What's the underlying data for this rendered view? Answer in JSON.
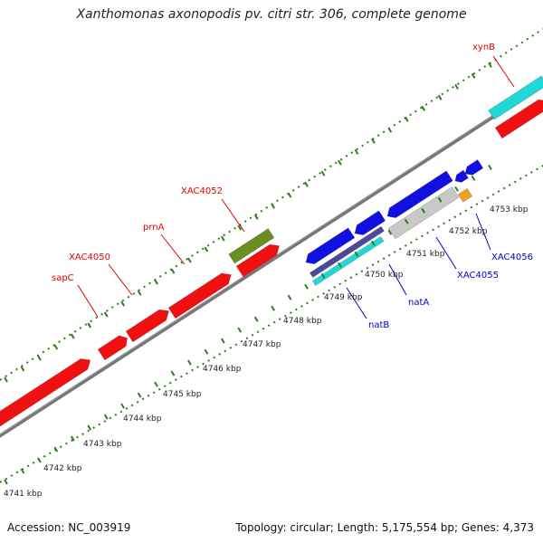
{
  "title": "Xanthomonas axonopodis pv. citri str. 306, complete genome",
  "accession": "Accession: NC_003919",
  "summary": "Topology: circular; Length: 5,175,554 bp; Genes: 4,373",
  "colors": {
    "backbone": "#888888",
    "tick": "#2e7d1e",
    "red_gene": "#f01010",
    "blue_gene": "#1010e0",
    "cyan_gene": "#20d8d8",
    "olive_gene": "#6b8e23",
    "gray_gene": "#c8c8c8",
    "navy_gene": "#4a4a9a",
    "orange_gene": "#f0a020",
    "red_label": "#e00000",
    "blue_label": "#0000cc"
  },
  "scale_labels": [
    "4741 kbp",
    "4742 kbp",
    "4743 kbp",
    "4744 kbp",
    "4745 kbp",
    "4746 kbp",
    "4747 kbp",
    "4748 kbp",
    "4749 kbp",
    "4750 kbp",
    "4751 kbp",
    "4752 kbp",
    "4753 kbp"
  ],
  "gene_labels": {
    "top": [
      "sapC",
      "XAC4050",
      "prnA",
      "XAC4052",
      "xynB"
    ],
    "bottom": [
      "natB",
      "natA",
      "XAC4055",
      "XAC4056"
    ]
  }
}
